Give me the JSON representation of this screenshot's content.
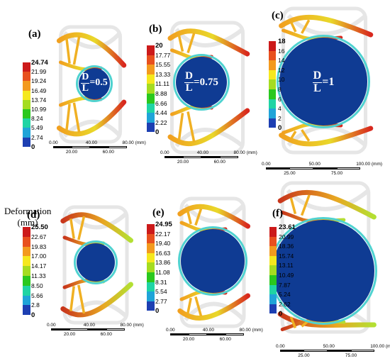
{
  "panels": [
    {
      "id": "a",
      "label": "(a)",
      "ratio_label": {
        "num": "D",
        "den": "L",
        "eq": "=0.5"
      },
      "legend": [
        "24.74",
        "21.99",
        "19.24",
        "16.49",
        "13.74",
        "10.99",
        "8.24",
        "5.49",
        "2.74",
        "0"
      ],
      "scale": {
        "top": [
          "0.00",
          "40.00",
          "80.00 (mm)"
        ],
        "bottom": [
          "20.00",
          "60.00"
        ]
      }
    },
    {
      "id": "b",
      "label": "(b)",
      "ratio_label": {
        "num": "D",
        "den": "L",
        "eq": "=0.75"
      },
      "legend": [
        "20",
        "17.77",
        "15.55",
        "13.33",
        "11.11",
        "8.88",
        "6.66",
        "4.44",
        "2.22",
        "0"
      ],
      "scale": {
        "top": [
          "0.00",
          "40.00",
          "80.00 (mm)"
        ],
        "bottom": [
          "20.00",
          "60.00"
        ]
      }
    },
    {
      "id": "c",
      "label": "(c)",
      "ratio_label": {
        "num": "D",
        "den": "L",
        "eq": "=1"
      },
      "legend": [
        "18",
        "16",
        "14",
        "12",
        "10",
        "8",
        "6",
        "4",
        "2",
        "0"
      ],
      "scale": {
        "top": [
          "0.00",
          "50.00",
          "100.00 (mm)"
        ],
        "bottom": [
          "25.00",
          "75.00"
        ]
      }
    },
    {
      "id": "d",
      "label": "(d)",
      "legend": [
        "25.50",
        "22.67",
        "19.83",
        "17.00",
        "14.17",
        "11.33",
        "8.50",
        "5.66",
        "2.8",
        "0"
      ],
      "scale": {
        "top": [
          "0.00",
          "40.00",
          "80.00 (mm)"
        ],
        "bottom": [
          "20.00",
          "60.00"
        ]
      }
    },
    {
      "id": "e",
      "label": "(e)",
      "legend": [
        "24.95",
        "22.17",
        "19.40",
        "16.63",
        "13.86",
        "11.08",
        "8.31",
        "5.54",
        "2.77",
        "0"
      ],
      "scale": {
        "top": [
          "0.00",
          "40.00",
          "80.00 (mm)"
        ],
        "bottom": [
          "20.00",
          "60.00"
        ]
      }
    },
    {
      "id": "f",
      "label": "(f)",
      "legend": [
        "23.61",
        "20.99",
        "18.36",
        "15.74",
        "13.11",
        "10.49",
        "7.87",
        "5.24",
        "2.62",
        "0"
      ],
      "scale": {
        "top": [
          "0.00",
          "50.00",
          "100.00 (mm)"
        ],
        "bottom": [
          "25.00",
          "75.00"
        ]
      }
    }
  ],
  "deformation_label": {
    "line1": "Deformation",
    "line2": "(mm)"
  },
  "colors": {
    "scale": [
      "#cc1a1a",
      "#e8501e",
      "#f39a1e",
      "#f5e81e",
      "#a5dc20",
      "#2ac81e",
      "#1fd4a4",
      "#1fa4d8",
      "#1d3fb2"
    ],
    "disk": "#0f3b93",
    "ghost": "#e6e6e6"
  }
}
